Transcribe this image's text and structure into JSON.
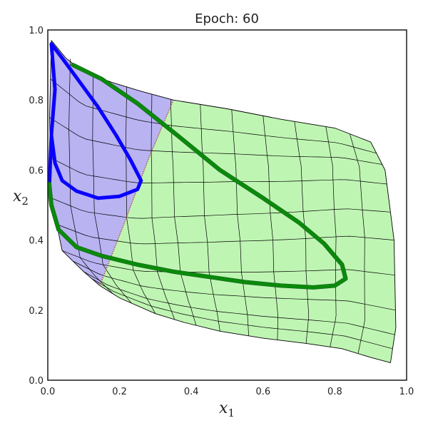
{
  "chart_data": {
    "type": "line",
    "title": "Epoch: 60",
    "xlabel": "x",
    "xlabel_sub": "1",
    "ylabel": "x",
    "ylabel_sub": "2",
    "xlim": [
      0.0,
      1.0
    ],
    "ylim": [
      0.0,
      1.0
    ],
    "x_ticks": [
      "0.0",
      "0.2",
      "0.4",
      "0.6",
      "0.8",
      "1.0"
    ],
    "y_ticks": [
      "0.0",
      "0.2",
      "0.4",
      "0.6",
      "0.8",
      "1.0"
    ],
    "grid": false,
    "colors": {
      "region_class_1": "#b9b3f2",
      "region_class_2": "#bff5b3",
      "trajectory_class_1": "#0a00ff",
      "trajectory_class_2": "#0a8a0a",
      "mesh": "#000000",
      "boundary": "#b04a38"
    },
    "region_class_1": [
      [
        0.01,
        0.97
      ],
      [
        0.05,
        0.92
      ],
      [
        0.1,
        0.88
      ],
      [
        0.18,
        0.85
      ],
      [
        0.26,
        0.825
      ],
      [
        0.35,
        0.8
      ],
      [
        0.28,
        0.63
      ],
      [
        0.21,
        0.44
      ],
      [
        0.145,
        0.27
      ],
      [
        0.1,
        0.31
      ],
      [
        0.04,
        0.37
      ],
      [
        0.01,
        0.52
      ],
      [
        0.005,
        0.75
      ]
    ],
    "region_class_2": [
      [
        0.35,
        0.8
      ],
      [
        0.5,
        0.775
      ],
      [
        0.65,
        0.745
      ],
      [
        0.8,
        0.72
      ],
      [
        0.9,
        0.68
      ],
      [
        0.94,
        0.6
      ],
      [
        0.965,
        0.4
      ],
      [
        0.97,
        0.15
      ],
      [
        0.955,
        0.05
      ],
      [
        0.9,
        0.065
      ],
      [
        0.82,
        0.09
      ],
      [
        0.72,
        0.105
      ],
      [
        0.6,
        0.12
      ],
      [
        0.48,
        0.14
      ],
      [
        0.38,
        0.165
      ],
      [
        0.3,
        0.19
      ],
      [
        0.2,
        0.235
      ],
      [
        0.145,
        0.27
      ],
      [
        0.21,
        0.44
      ],
      [
        0.28,
        0.63
      ]
    ],
    "decision_boundary": [
      [
        0.35,
        0.8
      ],
      [
        0.28,
        0.63
      ],
      [
        0.21,
        0.44
      ],
      [
        0.145,
        0.27
      ]
    ],
    "trajectory_class_1": [
      [
        0.005,
        0.57
      ],
      [
        0.01,
        0.7
      ],
      [
        0.02,
        0.83
      ],
      [
        0.01,
        0.96
      ],
      [
        0.04,
        0.92
      ],
      [
        0.09,
        0.85
      ],
      [
        0.14,
        0.78
      ],
      [
        0.19,
        0.7
      ],
      [
        0.23,
        0.63
      ],
      [
        0.26,
        0.57
      ],
      [
        0.25,
        0.545
      ],
      [
        0.2,
        0.525
      ],
      [
        0.14,
        0.52
      ],
      [
        0.08,
        0.54
      ],
      [
        0.04,
        0.57
      ],
      [
        0.02,
        0.62
      ],
      [
        0.01,
        0.7
      ]
    ],
    "trajectory_class_2": [
      [
        0.07,
        0.9
      ],
      [
        0.15,
        0.86
      ],
      [
        0.25,
        0.79
      ],
      [
        0.36,
        0.7
      ],
      [
        0.48,
        0.6
      ],
      [
        0.6,
        0.52
      ],
      [
        0.7,
        0.45
      ],
      [
        0.77,
        0.39
      ],
      [
        0.82,
        0.33
      ],
      [
        0.83,
        0.29
      ],
      [
        0.8,
        0.27
      ],
      [
        0.74,
        0.265
      ],
      [
        0.65,
        0.27
      ],
      [
        0.55,
        0.28
      ],
      [
        0.45,
        0.295
      ],
      [
        0.35,
        0.31
      ],
      [
        0.25,
        0.33
      ],
      [
        0.15,
        0.355
      ],
      [
        0.08,
        0.38
      ],
      [
        0.03,
        0.43
      ],
      [
        0.01,
        0.5
      ],
      [
        0.003,
        0.57
      ]
    ]
  }
}
